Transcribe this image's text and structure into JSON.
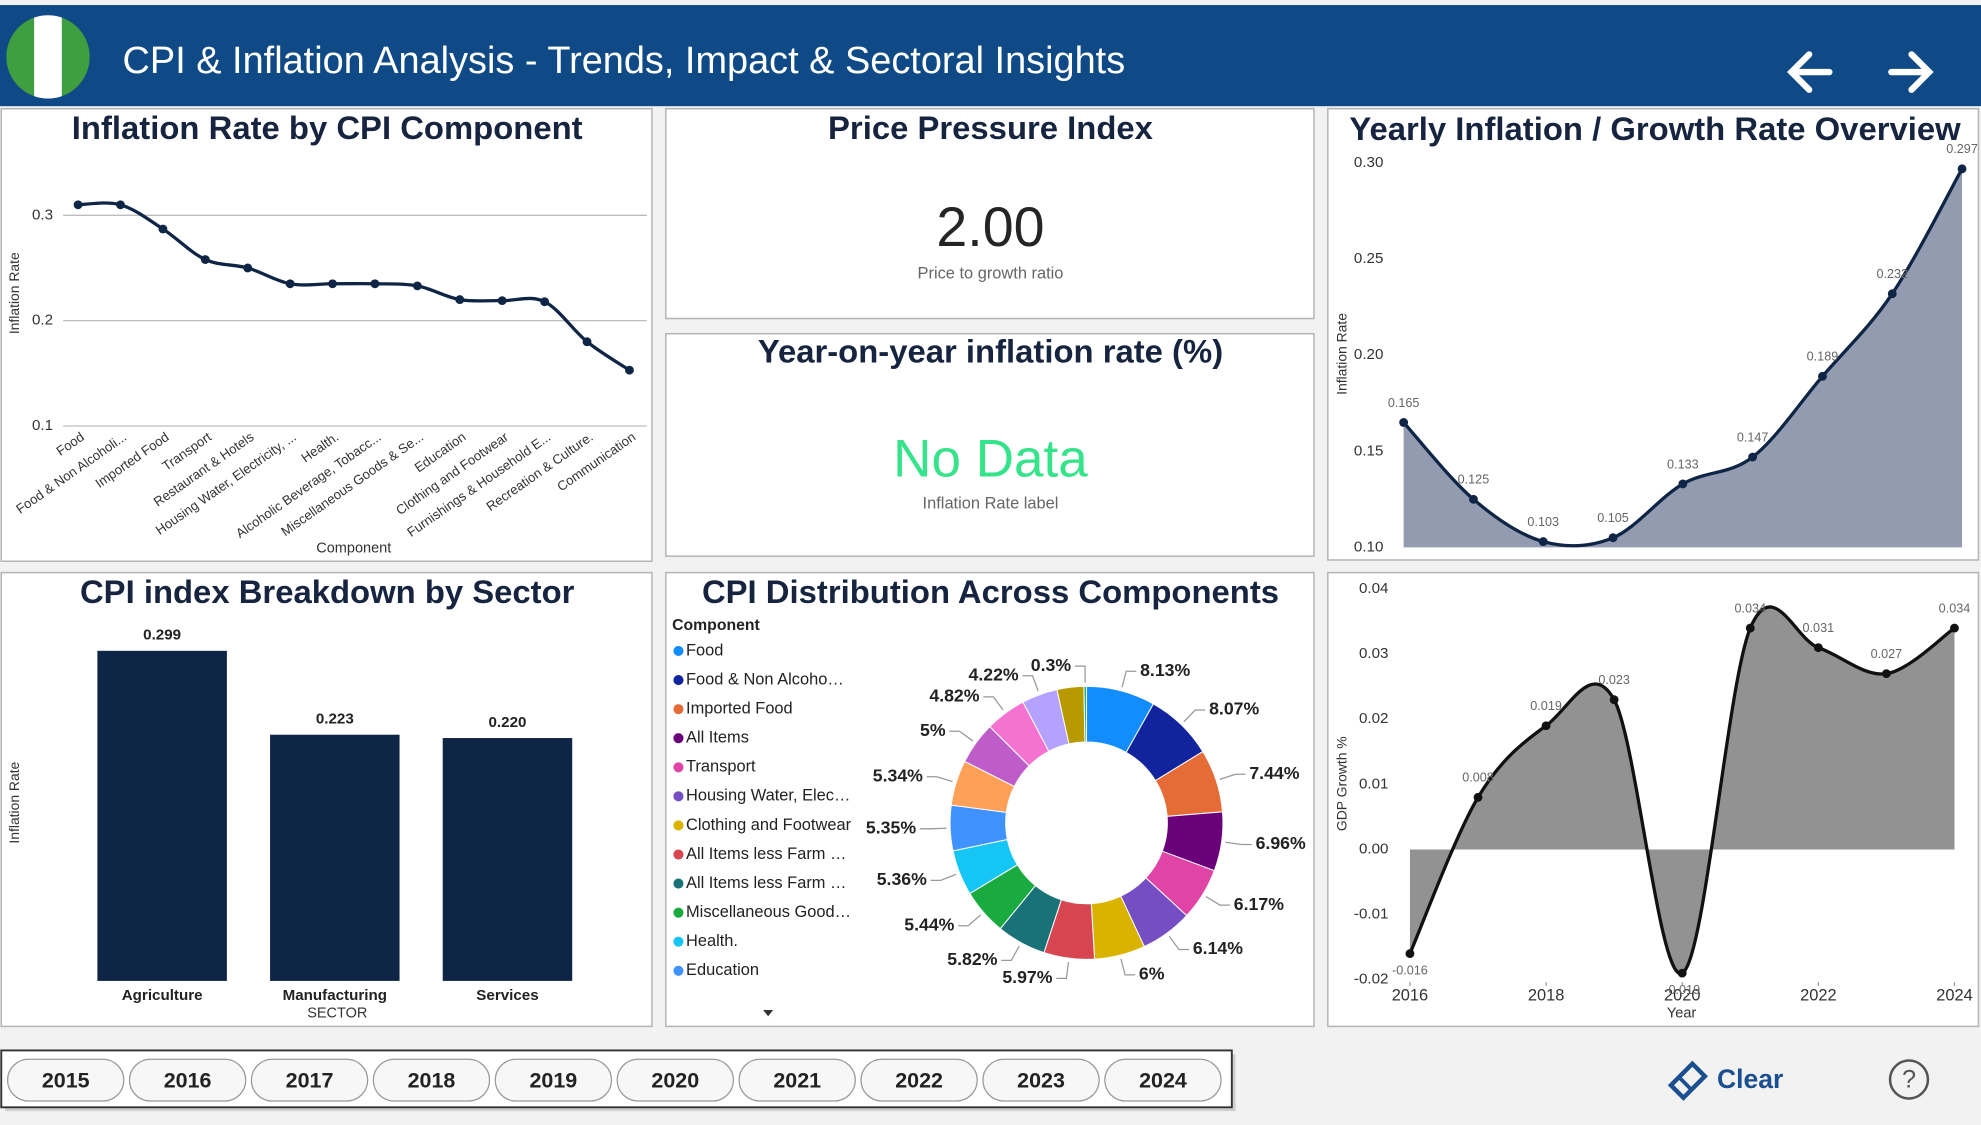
{
  "header": {
    "title": "CPI & Inflation Analysis - Trends, Impact & Sectoral Insights"
  },
  "cards": [
    {
      "title": "Price Pressure Index",
      "value": "2.00",
      "label": "Price to growth ratio"
    },
    {
      "title": "Year-on-year inflation rate (%)",
      "value": "No Data",
      "label": "Inflation Rate label"
    }
  ],
  "slicer": {
    "years": [
      2015,
      2016,
      2017,
      2018,
      2019,
      2020,
      2021,
      2022,
      2023,
      2024
    ]
  },
  "clear_button": "Clear",
  "help_icon": "?",
  "chart_data": [
    {
      "type": "line",
      "title": "Inflation Rate by CPI Component",
      "x_label": "Component",
      "y_label": "Inflation Rate",
      "categories": [
        "Food",
        "Food & Non Alcoholi...",
        "Imported Food",
        "Transport",
        "Restaurant & Hotels",
        "Housing Water, Electricity, ...",
        "Health.",
        "Alcoholic Beverage, Tobacc...",
        "Miscellaneous Goods & Se...",
        "Education",
        "Clothing and Footwear",
        "Furnishings & Household E...",
        "Recreation & Culture.",
        "Communication"
      ],
      "values": [
        0.31,
        0.31,
        0.287,
        0.258,
        0.25,
        0.235,
        0.235,
        0.235,
        0.233,
        0.22,
        0.219,
        0.218,
        0.18,
        0.153
      ],
      "color": "#0f2545",
      "ylim": [
        0.1,
        0.34
      ],
      "yticks": [
        0.1,
        0.2,
        0.3
      ],
      "grid": true
    },
    {
      "type": "area",
      "title": "Yearly Inflation / Growth Rate Overview",
      "y_label": "Inflation Rate",
      "categories": [
        null,
        null,
        null,
        null,
        null,
        null,
        null,
        null,
        null
      ],
      "values": [
        0.165,
        0.125,
        0.103,
        0.105,
        0.133,
        0.147,
        0.189,
        0.232,
        0.297
      ],
      "color": "#0f2545",
      "fill": "#8c96ab",
      "ylim": [
        0.1,
        0.3
      ],
      "yticks": [
        {
          "value": 0.1,
          "label": "0.10"
        },
        0.15,
        {
          "value": 0.2,
          "label": "0.20"
        },
        0.25,
        {
          "value": 0.3,
          "label": "0.30"
        }
      ],
      "grid": false
    },
    {
      "type": "bar",
      "title": "CPI index Breakdown by Sector",
      "x_label": "SECTOR",
      "y_label": "Inflation Rate",
      "categories": [
        "Agriculture",
        "Manufacturing",
        "Services"
      ],
      "values": [
        0.299,
        0.223,
        0.22
      ],
      "value_labels": [
        "0.299",
        "0.223",
        "0.220"
      ],
      "color": "#0f2545",
      "ylim": [
        0,
        0.3
      ]
    },
    {
      "type": "donut",
      "title": "CPI Distribution Across Components",
      "legend_title": "Component",
      "categories": [
        "Food",
        "Food &  Non Alcoho…",
        "Imported Food",
        "All Items",
        "Transport",
        "Housing Water, Elec…",
        "Clothing and Footwear",
        "All Items less Farm …",
        "All Items less Farm …",
        "Miscellaneous Good…",
        "Health.",
        "Education",
        null,
        null,
        null,
        null,
        null,
        null
      ],
      "values": [
        8.13,
        8.07,
        7.44,
        6.96,
        6.17,
        6.14,
        6,
        5.97,
        5.82,
        5.44,
        5.36,
        5.35,
        5.34,
        5,
        4.82,
        4.22,
        3.17,
        0.3
      ],
      "value_labels": [
        "8.13%",
        "8.07%",
        "7.44%",
        "6.96%",
        "6.17%",
        "6.14%",
        "6%",
        "5.97%",
        "5.82%",
        "5.44%",
        "5.36%",
        "5.35%",
        "5.34%",
        "5%",
        "4.82%",
        "4.22%",
        null,
        "0.3%"
      ],
      "colors": [
        "#118dff",
        "#12239e",
        "#e66c37",
        "#6b007b",
        "#e044a7",
        "#744ec2",
        "#d9b300",
        "#d64550",
        "#197278",
        "#1aab40",
        "#15c6f4",
        "#4092ff",
        "#ffa058",
        "#be5dc9",
        "#f472d0",
        "#b5a1ff",
        "#b89a00",
        "#1aab90"
      ]
    },
    {
      "type": "area",
      "x_label": "Year",
      "y_label": "GDP Growth %",
      "x": [
        2016,
        2017,
        2018,
        2019,
        2020,
        2021,
        2022,
        2023,
        2024
      ],
      "values": [
        -0.016,
        0.008,
        0.019,
        0.023,
        -0.019,
        0.034,
        0.031,
        0.027,
        0.034
      ],
      "color": "#111111",
      "fill": "#8c8c8c",
      "xlim": [
        2016,
        2024
      ],
      "xticks": [
        2016,
        2018,
        2020,
        2022,
        2024
      ],
      "ylim": [
        -0.02,
        0.04
      ],
      "yticks": [
        0.04,
        0.03,
        0.02,
        0.01,
        {
          "value": 0,
          "label": "0.00"
        },
        -0.01,
        -0.02
      ],
      "grid": false
    }
  ]
}
